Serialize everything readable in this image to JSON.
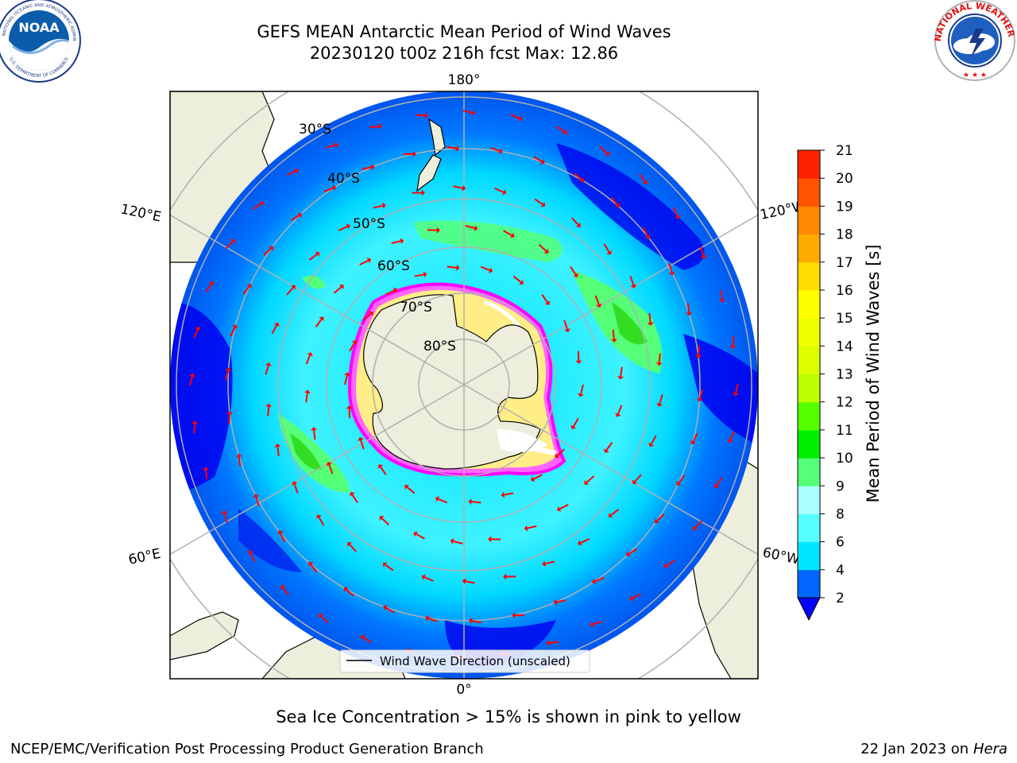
{
  "header": {
    "title": "GEFS MEAN Antarctic Mean Period of Wind Waves",
    "subtitle": "20230120 t00z 216h fcst   Max: 12.86"
  },
  "map": {
    "projection": "south-polar-stereographic",
    "lat_labels": [
      "30°S",
      "40°S",
      "50°S",
      "60°S",
      "70°S",
      "80°S"
    ],
    "lon_labels": {
      "top": "180°",
      "upper_right": "120°W",
      "upper_left": "120°E",
      "lower_left": "60°E",
      "lower_right": "60°W",
      "bottom": "0°"
    },
    "legend_label": "Wind Wave Direction (unscaled)",
    "arrow_color": "#ff0000",
    "land_color": "#eeeedc",
    "sea_ice_colors": [
      "#ff00ff",
      "#ffd700",
      "#ffffff"
    ]
  },
  "colorbar": {
    "label": "Mean Period of Wind Waves [s]",
    "ticks": [
      "2",
      "4",
      "6",
      "8",
      "9",
      "10",
      "11",
      "12",
      "13",
      "14",
      "15",
      "16",
      "17",
      "18",
      "19",
      "20",
      "21"
    ],
    "colors": [
      "#0066ff",
      "#00e5ff",
      "#55ffff",
      "#aaffff",
      "#55ff77",
      "#00ee00",
      "#55ff00",
      "#bbff00",
      "#ddff00",
      "#eeff00",
      "#ffff00",
      "#ffdd00",
      "#ffaa00",
      "#ff8800",
      "#ff5500",
      "#ff2200"
    ],
    "under_color": "#0000ff"
  },
  "footer": {
    "subtitle": "Sea Ice Concentration > 15% is shown in pink to yellow",
    "left": "NCEP/EMC/Verification Post Processing Product Generation Branch",
    "right_date": "22 Jan 2023 on ",
    "right_machine": "Hera"
  },
  "logos": {
    "left": "noaa-logo",
    "right": "nws-logo"
  }
}
